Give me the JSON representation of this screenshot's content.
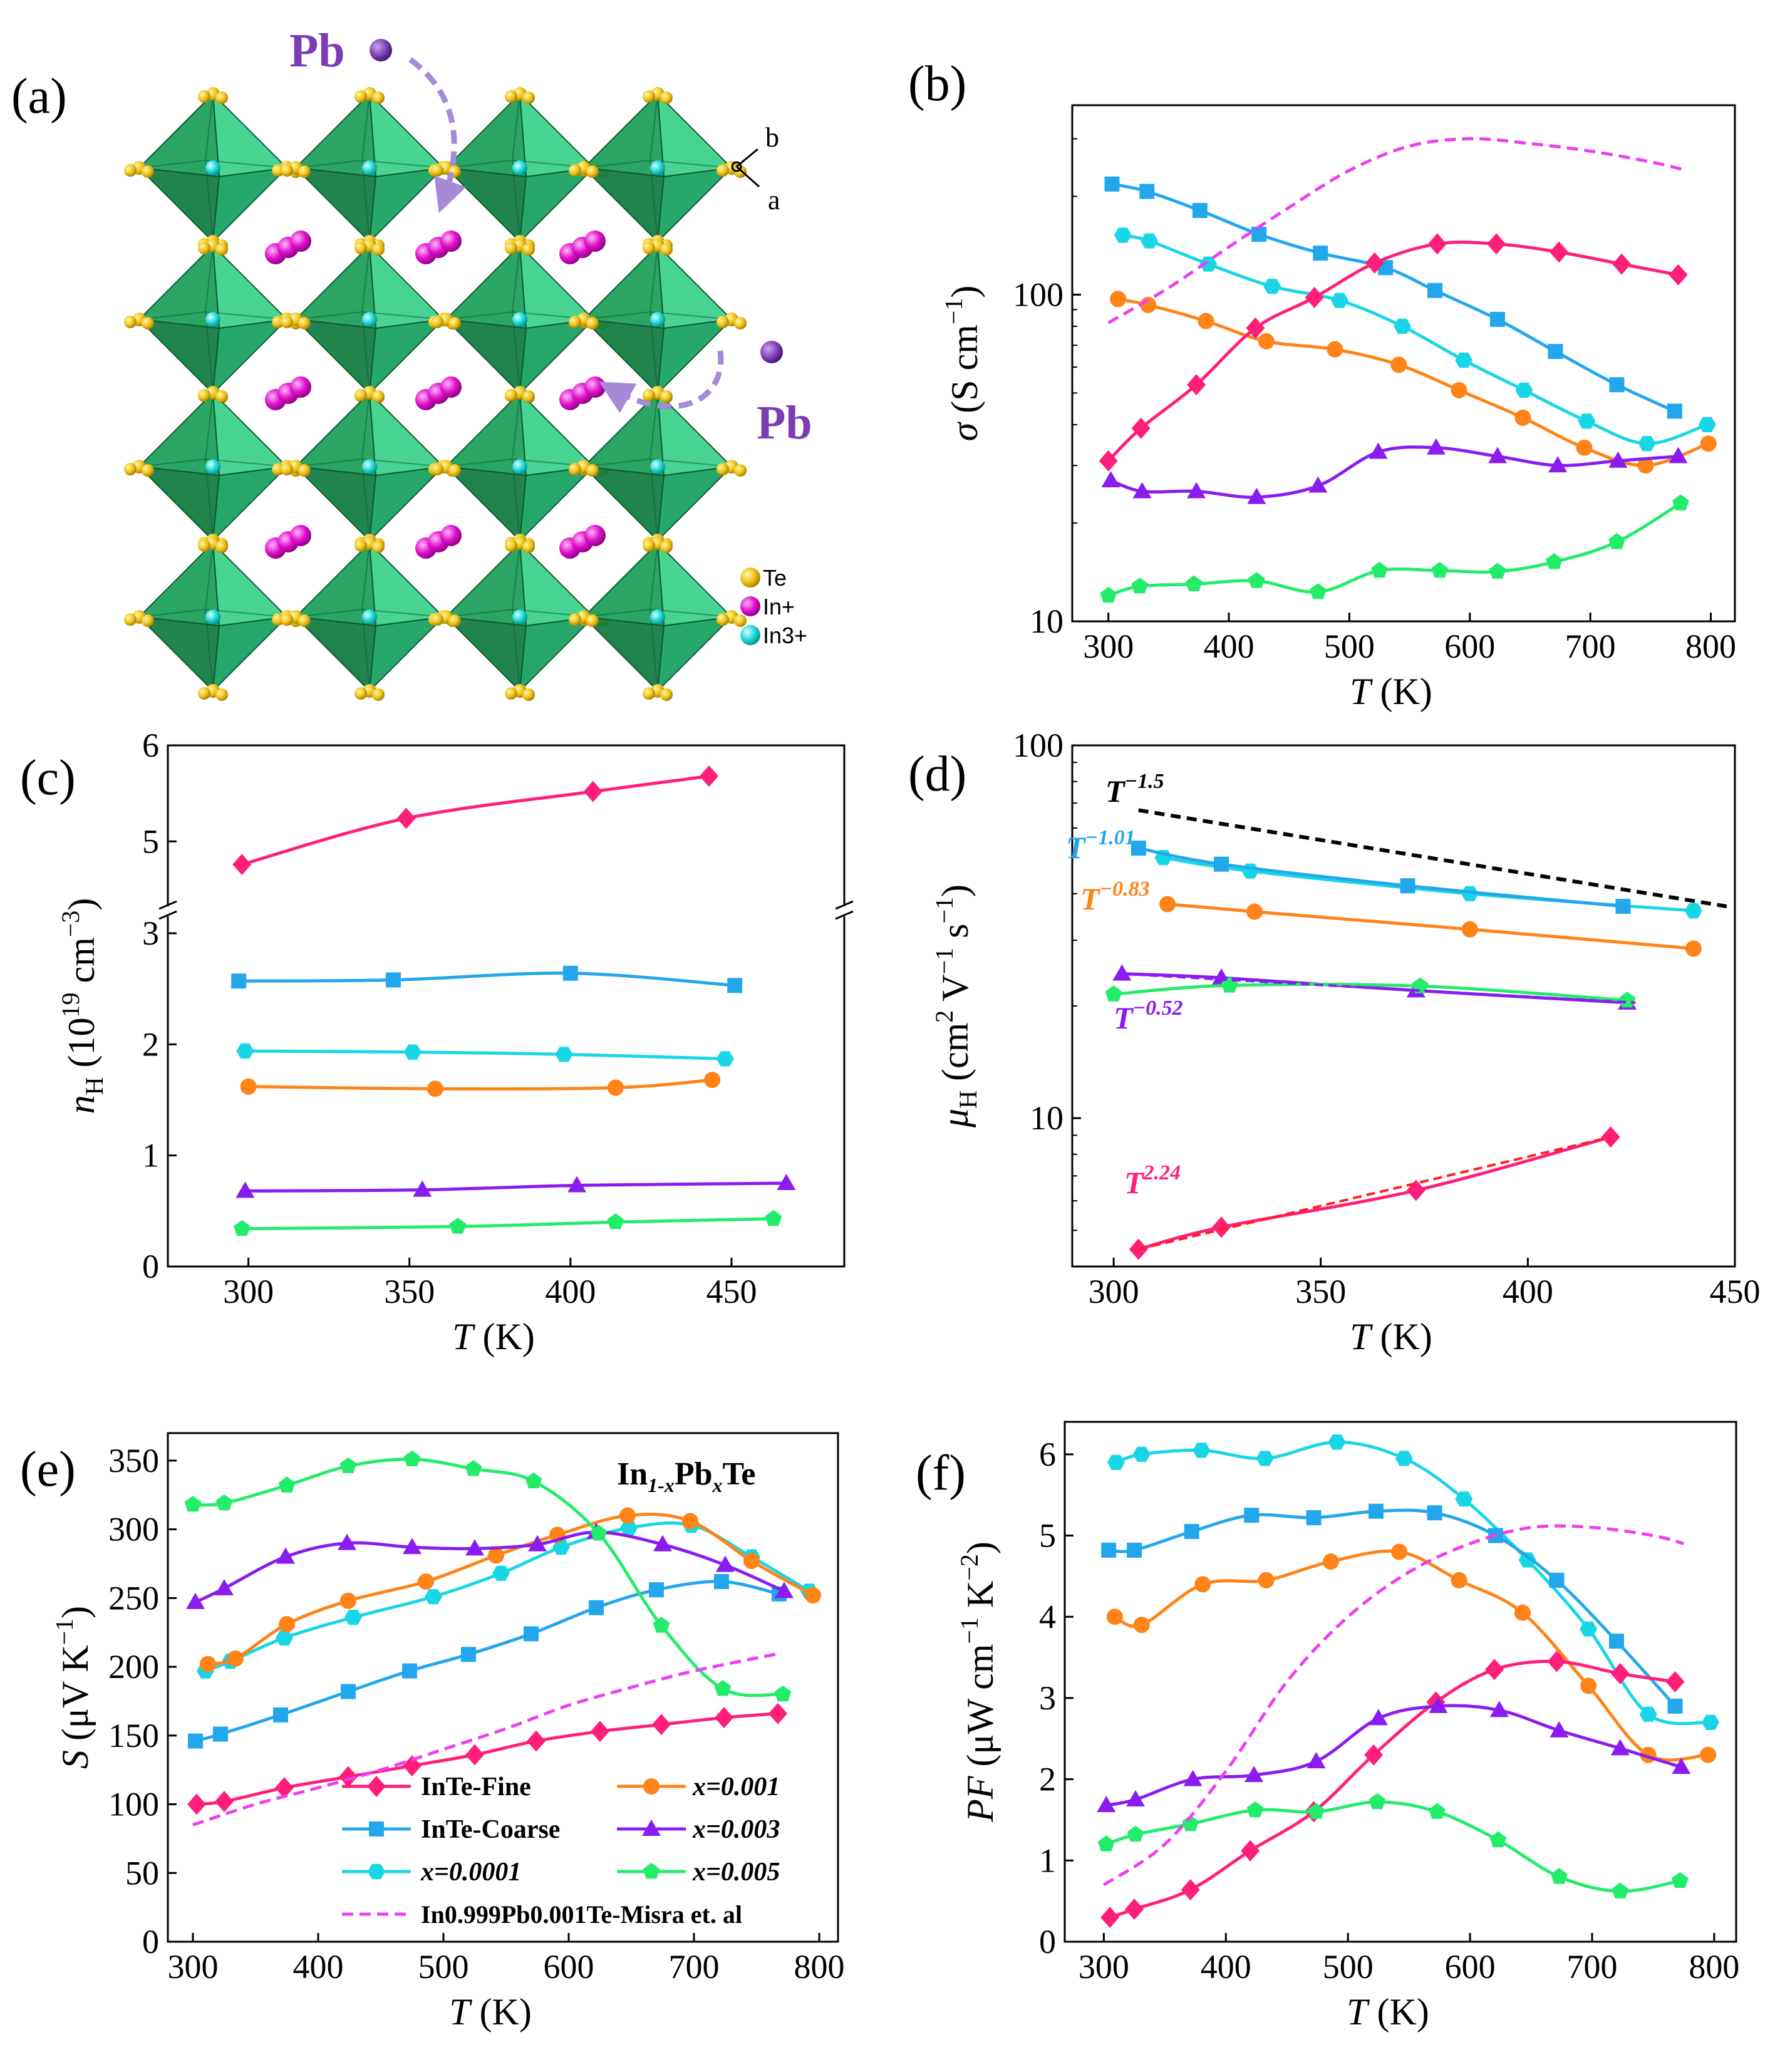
{
  "panels": {
    "a": {
      "label": "(a)",
      "pb_top": "Pb",
      "pb_right": "Pb",
      "axis_b": "b",
      "axis_a": "a",
      "legend": [
        "Te",
        "In+",
        "In3+"
      ]
    },
    "b": {
      "label": "(b)"
    },
    "c": {
      "label": "(c)"
    },
    "d": {
      "label": "(d)"
    },
    "e": {
      "label": "(e)",
      "compound_html": "In<tspan font-size='32' dy='12' font-style='italic'>1-x</tspan><tspan dy='-12'>Pb</tspan><tspan font-size='32' dy='12' font-style='italic'>x</tspan><tspan dy='-12'>Te</tspan>"
    },
    "f": {
      "label": "(f)"
    }
  },
  "colors": {
    "fine": "#ff1f7a",
    "coarse": "#23a7ec",
    "x0001": "#18d6e6",
    "x001": "#ff8316",
    "x003": "#8a1cf0",
    "x005": "#22ec6a",
    "misra": "#ee3ef2",
    "slope": "#000000",
    "fit_red": "#ff2020",
    "pb": "#7b3db5",
    "te": "#f2c418",
    "in1": "#e010c8",
    "in3": "#20d8d8",
    "octa": "#14a05a"
  },
  "legend": {
    "fine": "InTe-Fine",
    "coarse": "InTe-Coarse",
    "x0001": "x=0.0001",
    "x001": "x=0.001",
    "x003": "x=0.003",
    "x005": "x=0.005",
    "misra": "In0.999Pb0.001Te-Misra et. al"
  },
  "chart_data": [
    {
      "panel": "b",
      "type": "line",
      "yscale": "log",
      "xlabel": "T (K)",
      "ylabel": "σ (S cm−1)",
      "xlim": [
        270,
        820
      ],
      "ylim": [
        10,
        380
      ],
      "xticks": [
        300,
        400,
        500,
        600,
        700,
        800
      ],
      "yticks": [
        10,
        100
      ],
      "series": [
        {
          "name": "x=0.0001",
          "key": "x0001",
          "marker": "hexagon",
          "x": [
            312,
            334,
            383,
            436,
            492,
            544,
            595,
            645,
            697,
            747,
            797
          ],
          "y": [
            152,
            146,
            124,
            106,
            96,
            80,
            63,
            51,
            41,
            35,
            40
          ]
        },
        {
          "name": "InTe-Coarse",
          "key": "coarse",
          "marker": "square",
          "x": [
            303,
            332,
            376,
            425,
            476,
            530,
            571,
            623,
            671,
            722,
            770
          ],
          "y": [
            218,
            207,
            181,
            153,
            134,
            121,
            103,
            84,
            67,
            53,
            44
          ]
        },
        {
          "name": "x=0.001",
          "key": "x001",
          "marker": "circle",
          "x": [
            308,
            333,
            381,
            431,
            488,
            541,
            591,
            644,
            695,
            746,
            798
          ],
          "y": [
            97,
            93,
            83,
            72,
            68,
            61,
            51,
            42,
            34,
            30,
            35
          ]
        },
        {
          "name": "InTe-Fine",
          "key": "fine",
          "marker": "diamond",
          "x": [
            300,
            327,
            373,
            422,
            471,
            521,
            573,
            622,
            674,
            726,
            773
          ],
          "y": [
            31,
            39,
            53,
            79,
            98,
            125,
            143,
            143,
            135,
            124,
            115
          ]
        },
        {
          "name": "x=0.003",
          "key": "x003",
          "marker": "triangle",
          "x": [
            302,
            328,
            373,
            423,
            474,
            524,
            572,
            623,
            673,
            723,
            773
          ],
          "y": [
            27,
            25,
            25,
            24,
            26,
            33,
            34,
            32,
            30,
            31,
            32
          ]
        },
        {
          "name": "x=0.005",
          "key": "x005",
          "marker": "pentagon",
          "x": [
            300,
            326,
            371,
            423,
            474,
            525,
            575,
            623,
            670,
            722,
            775
          ],
          "y": [
            12,
            12.8,
            13,
            13.3,
            12.3,
            14.3,
            14.3,
            14.2,
            15.2,
            17.5,
            23
          ]
        },
        {
          "name": "In0.999Pb0.001Te-Misra et. al",
          "key": "misra",
          "marker": "none",
          "dashed": true,
          "x": [
            300,
            350,
            400,
            450,
            500,
            550,
            600,
            650,
            700,
            750,
            780
          ],
          "y": [
            82,
            105,
            140,
            185,
            240,
            285,
            300,
            290,
            275,
            255,
            240
          ]
        }
      ]
    },
    {
      "panel": "c",
      "type": "line",
      "yscale": "broken",
      "xlabel": "T (K)",
      "ylabel": "nH (1019 cm−3)",
      "xlim": [
        275,
        485
      ],
      "ylim_lower": [
        0,
        3
      ],
      "ylim_upper": [
        4.5,
        6
      ],
      "xticks": [
        300,
        350,
        400,
        450
      ],
      "yticks_lower": [
        0,
        1,
        2,
        3
      ],
      "yticks_upper": [
        5,
        6
      ],
      "series": [
        {
          "name": "InTe-Fine",
          "key": "fine",
          "marker": "diamond",
          "x": [
            298,
            349,
            407,
            443
          ],
          "y": [
            4.76,
            5.24,
            5.52,
            5.68
          ]
        },
        {
          "name": "InTe-Coarse",
          "key": "coarse",
          "marker": "square",
          "x": [
            297,
            345,
            400,
            451
          ],
          "y": [
            2.57,
            2.58,
            2.64,
            2.53
          ]
        },
        {
          "name": "x=0.0001",
          "key": "x0001",
          "marker": "hexagon",
          "x": [
            299,
            351,
            398,
            448
          ],
          "y": [
            1.94,
            1.93,
            1.91,
            1.87
          ]
        },
        {
          "name": "x=0.001",
          "key": "x001",
          "marker": "circle",
          "x": [
            300,
            358,
            414,
            444
          ],
          "y": [
            1.62,
            1.6,
            1.61,
            1.68
          ]
        },
        {
          "name": "x=0.003",
          "key": "x003",
          "marker": "triangle",
          "x": [
            299,
            354,
            402,
            467
          ],
          "y": [
            0.68,
            0.69,
            0.73,
            0.75
          ]
        },
        {
          "name": "x=0.005",
          "key": "x005",
          "marker": "pentagon",
          "x": [
            298,
            365,
            414,
            463
          ],
          "y": [
            0.34,
            0.36,
            0.4,
            0.43
          ]
        }
      ]
    },
    {
      "panel": "d",
      "type": "line",
      "yscale": "log",
      "xlabel": "T (K)",
      "ylabel": "μH (cm2 V−1 s−1)",
      "xlim": [
        290,
        450
      ],
      "ylim": [
        4,
        100
      ],
      "xticks": [
        300,
        350,
        400,
        450
      ],
      "yticks": [
        10,
        100
      ],
      "annotations": [
        "T−1.5",
        "T−1.01",
        "T−0.83",
        "T−0.52",
        "T2.24"
      ],
      "series": [
        {
          "name": "x=0.0001",
          "key": "x0001",
          "marker": "hexagon",
          "x": [
            312,
            333,
            386,
            440
          ],
          "y": [
            50,
            46,
            40,
            36
          ]
        },
        {
          "name": "InTe-Coarse",
          "key": "coarse",
          "marker": "square",
          "x": [
            306,
            326,
            371,
            423
          ],
          "y": [
            53,
            48,
            42,
            37
          ]
        },
        {
          "name": "x=0.001",
          "key": "x001",
          "marker": "circle",
          "x": [
            313,
            334,
            386,
            440
          ],
          "y": [
            37.5,
            35.8,
            32.1,
            28.5
          ]
        },
        {
          "name": "x=0.003",
          "key": "x003",
          "marker": "triangle",
          "x": [
            302,
            326,
            373,
            424
          ],
          "y": [
            24.4,
            23.8,
            22,
            20.4
          ]
        },
        {
          "name": "x=0.005",
          "key": "x005",
          "marker": "pentagon",
          "x": [
            300,
            328,
            374,
            424
          ],
          "y": [
            21.5,
            22.7,
            22.6,
            20.7
          ]
        },
        {
          "name": "InTe-Fine",
          "key": "fine",
          "marker": "diamond",
          "x": [
            306,
            326,
            373,
            420
          ],
          "y": [
            4.45,
            5.1,
            6.4,
            8.9
          ]
        }
      ]
    },
    {
      "panel": "e",
      "type": "line",
      "xlabel": "T (K)",
      "ylabel": "S (μV K−1)",
      "xlim": [
        280,
        815
      ],
      "ylim": [
        0,
        370
      ],
      "xticks": [
        300,
        400,
        500,
        600,
        700,
        800
      ],
      "yticks": [
        0,
        50,
        100,
        150,
        200,
        250,
        300,
        350
      ],
      "series": [
        {
          "name": "InTe-Fine",
          "key": "fine",
          "marker": "diamond",
          "x": [
            303,
            325,
            373,
            424,
            475,
            525,
            574,
            625,
            674,
            724,
            767
          ],
          "y": [
            100,
            102,
            112,
            120,
            128,
            136,
            146,
            153,
            158,
            163,
            166
          ]
        },
        {
          "name": "InTe-Coarse",
          "key": "coarse",
          "marker": "square",
          "x": [
            302,
            322,
            370,
            424,
            473,
            520,
            570,
            622,
            670,
            722,
            768
          ],
          "y": [
            146,
            151,
            165,
            182,
            197,
            209,
            224,
            243,
            256,
            262,
            253
          ]
        },
        {
          "name": "x=0.0001",
          "key": "x0001",
          "marker": "hexagon",
          "x": [
            310,
            330,
            373,
            428,
            492,
            546,
            594,
            648,
            698,
            746,
            792
          ],
          "y": [
            197,
            204,
            221,
            236,
            251,
            268,
            287,
            301,
            303,
            280,
            255
          ]
        },
        {
          "name": "x=0.001",
          "key": "x001",
          "marker": "circle",
          "x": [
            312,
            334,
            375,
            424,
            486,
            542,
            591,
            647,
            697,
            746,
            795
          ],
          "y": [
            202,
            206,
            231,
            248,
            262,
            281,
            296,
            310,
            306,
            277,
            252
          ]
        },
        {
          "name": "x=0.003",
          "key": "x003",
          "marker": "triangle",
          "x": [
            302,
            325,
            374,
            423,
            475,
            525,
            575,
            622,
            675,
            725,
            772
          ],
          "y": [
            247,
            257,
            280,
            290,
            287,
            286,
            289,
            298,
            289,
            274,
            255
          ]
        },
        {
          "name": "x=0.005",
          "key": "x005",
          "marker": "pentagon",
          "x": [
            300,
            325,
            375,
            424,
            475,
            524,
            572,
            624,
            674,
            723,
            771
          ],
          "y": [
            318,
            319,
            332,
            346,
            351,
            344,
            335,
            297,
            230,
            184,
            180
          ]
        },
        {
          "name": "In0.999Pb0.001Te-Misra et. al",
          "key": "misra",
          "marker": "none",
          "dashed": true,
          "x": [
            300,
            350,
            400,
            450,
            500,
            550,
            600,
            650,
            700,
            770
          ],
          "y": [
            85,
            100,
            112,
            125,
            140,
            155,
            172,
            185,
            197,
            210
          ]
        }
      ]
    },
    {
      "panel": "f",
      "type": "line",
      "xlabel": "T (K)",
      "ylabel": "PF (μW cm−1 K−2)",
      "xlim": [
        268,
        818
      ],
      "ylim": [
        0,
        6.4
      ],
      "xticks": [
        300,
        400,
        500,
        600,
        700,
        800
      ],
      "yticks": [
        0,
        1,
        2,
        3,
        4,
        5,
        6
      ],
      "series": [
        {
          "name": "x=0.0001",
          "key": "x0001",
          "marker": "hexagon",
          "x": [
            310,
            331,
            380,
            432,
            491,
            546,
            595,
            647,
            697,
            746,
            797
          ],
          "y": [
            5.9,
            6.0,
            6.05,
            5.95,
            6.15,
            5.95,
            5.45,
            4.7,
            3.85,
            2.8,
            2.7
          ]
        },
        {
          "name": "InTe-Coarse",
          "key": "coarse",
          "marker": "square",
          "x": [
            304,
            325,
            372,
            421,
            472,
            523,
            571,
            621,
            671,
            720,
            768
          ],
          "y": [
            4.82,
            4.82,
            5.05,
            5.25,
            5.22,
            5.3,
            5.28,
            5.0,
            4.45,
            3.7,
            2.9
          ]
        },
        {
          "name": "x=0.001",
          "key": "x001",
          "marker": "circle",
          "x": [
            309,
            331,
            381,
            433,
            486,
            542,
            591,
            643,
            697,
            746,
            795
          ],
          "y": [
            4.0,
            3.9,
            4.4,
            4.45,
            4.68,
            4.8,
            4.45,
            4.05,
            3.15,
            2.3,
            2.3
          ]
        },
        {
          "name": "InTe-Fine",
          "key": "fine",
          "marker": "diamond",
          "x": [
            305,
            325,
            371,
            420,
            472,
            521,
            572,
            620,
            671,
            723,
            768
          ],
          "y": [
            0.3,
            0.4,
            0.64,
            1.12,
            1.6,
            2.3,
            2.95,
            3.35,
            3.45,
            3.3,
            3.2
          ]
        },
        {
          "name": "x=0.003",
          "key": "x003",
          "marker": "triangle",
          "x": [
            302,
            326,
            373,
            423,
            474,
            525,
            574,
            624,
            673,
            723,
            773
          ],
          "y": [
            1.68,
            1.75,
            2.0,
            2.05,
            2.22,
            2.75,
            2.9,
            2.85,
            2.6,
            2.38,
            2.15
          ]
        },
        {
          "name": "x=0.005",
          "key": "x005",
          "marker": "pentagon",
          "x": [
            302,
            326,
            371,
            424,
            474,
            524,
            573,
            623,
            673,
            723,
            772
          ],
          "y": [
            1.2,
            1.32,
            1.45,
            1.62,
            1.6,
            1.72,
            1.6,
            1.25,
            0.8,
            0.62,
            0.75
          ]
        },
        {
          "name": "In0.999Pb0.001Te-Misra et. al",
          "key": "misra",
          "marker": "none",
          "dashed": true,
          "x": [
            300,
            350,
            400,
            450,
            500,
            550,
            600,
            650,
            700,
            750,
            775
          ],
          "y": [
            0.7,
            1.2,
            2.1,
            3.2,
            4.0,
            4.55,
            4.9,
            5.1,
            5.1,
            5.0,
            4.9
          ]
        }
      ]
    }
  ]
}
